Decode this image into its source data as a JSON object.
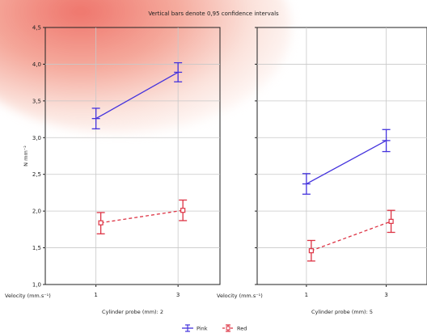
{
  "chart_data": {
    "type": "line",
    "title": "Vertical bars denote 0,95 confidence intervals",
    "ylabel": "N mm⁻²",
    "xlabel": "Velocity (mm.s⁻¹)",
    "ylim": [
      1.0,
      4.5
    ],
    "yticks": [
      1.0,
      1.5,
      2.0,
      2.5,
      3.0,
      3.5,
      4.0,
      4.5
    ],
    "ytick_labels": [
      "1,0",
      "1,5",
      "2,0",
      "2,5",
      "3,0",
      "3,5",
      "4,0",
      "4,5"
    ],
    "categories": [
      "1",
      "3"
    ],
    "grid": true,
    "legend_placement": "bottom-center",
    "panels": [
      {
        "label": "Cylinder probe (mm): 2",
        "series": [
          {
            "name": "Pink",
            "values": [
              3.26,
              3.89
            ],
            "ci_low": [
              3.12,
              3.76
            ],
            "ci_high": [
              3.4,
              4.02
            ]
          },
          {
            "name": "Red",
            "values": [
              1.84,
              2.01
            ],
            "ci_low": [
              1.69,
              1.87
            ],
            "ci_high": [
              1.98,
              2.15
            ]
          }
        ]
      },
      {
        "label": "Cylinder probe (mm): 5",
        "series": [
          {
            "name": "Pink",
            "values": [
              2.37,
              2.96
            ],
            "ci_low": [
              2.23,
              2.81
            ],
            "ci_high": [
              2.51,
              3.11
            ]
          },
          {
            "name": "Red",
            "values": [
              1.46,
              1.86
            ],
            "ci_low": [
              1.32,
              1.71
            ],
            "ci_high": [
              1.6,
              2.01
            ]
          }
        ]
      }
    ],
    "series_styles": [
      {
        "name": "Pink",
        "color": "#4433dd",
        "line": "solid",
        "marker": "none"
      },
      {
        "name": "Red",
        "color": "#dd3344",
        "line": "dashed",
        "marker": "open-square"
      }
    ]
  }
}
